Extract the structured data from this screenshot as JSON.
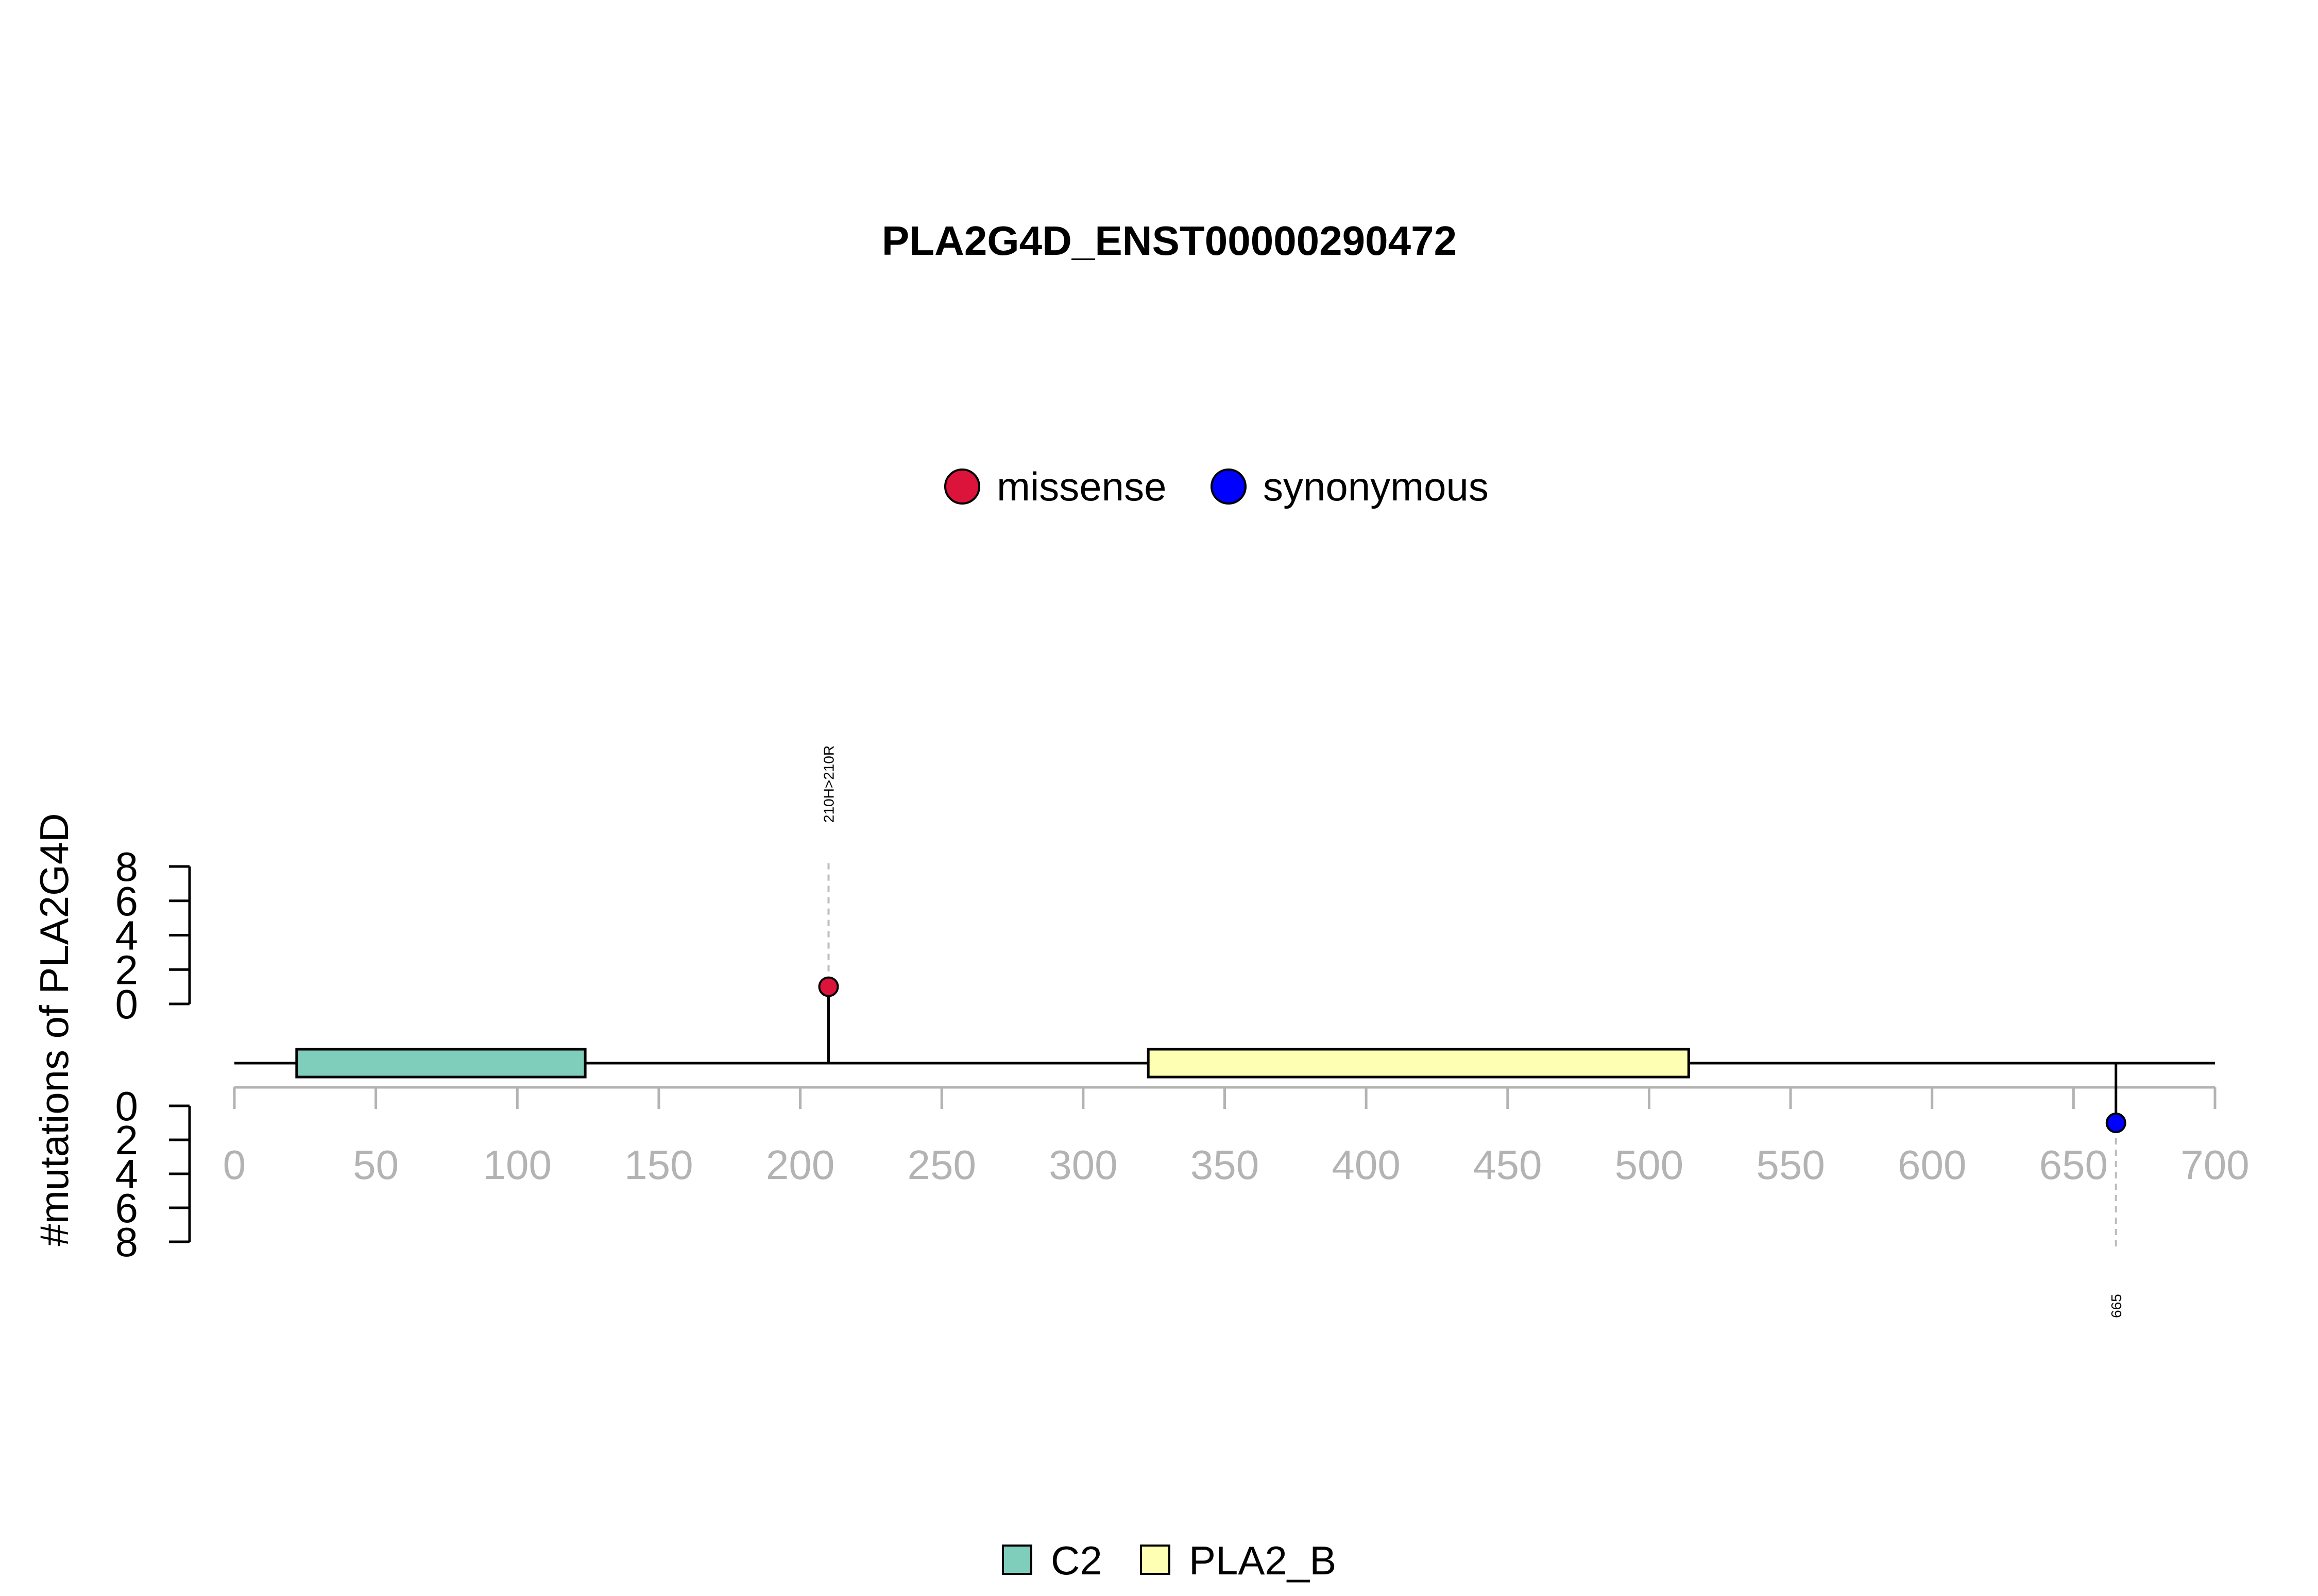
{
  "chart_data": {
    "type": "lollipop",
    "title": "PLA2G4D_ENST00000290472",
    "ylabel": "#mutations of PLA2G4D",
    "xlim": [
      0,
      700
    ],
    "x_ticks": [
      0,
      50,
      100,
      150,
      200,
      250,
      300,
      350,
      400,
      450,
      500,
      550,
      600,
      650,
      700
    ],
    "y_ticks_top": [
      0,
      2,
      4,
      6,
      8
    ],
    "y_ticks_bottom": [
      0,
      2,
      4,
      6,
      8
    ],
    "ylim_top": [
      0,
      8
    ],
    "ylim_bottom": [
      0,
      8
    ],
    "legend_mutations": [
      {
        "name": "missense",
        "color": "#DC143C"
      },
      {
        "name": "synonymous",
        "color": "#0000FF"
      }
    ],
    "domains": [
      {
        "name": "C2",
        "start": 22,
        "end": 124,
        "color": "#7FCDBB"
      },
      {
        "name": "PLA2_B",
        "start": 323,
        "end": 514,
        "color": "#FFFFB3"
      }
    ],
    "mutations": [
      {
        "position": 210,
        "count": 1,
        "type": "missense",
        "label": "210H>210R",
        "side": "top"
      },
      {
        "position": 665,
        "count": 1,
        "type": "synonymous",
        "label": "665",
        "side": "bottom"
      }
    ]
  }
}
